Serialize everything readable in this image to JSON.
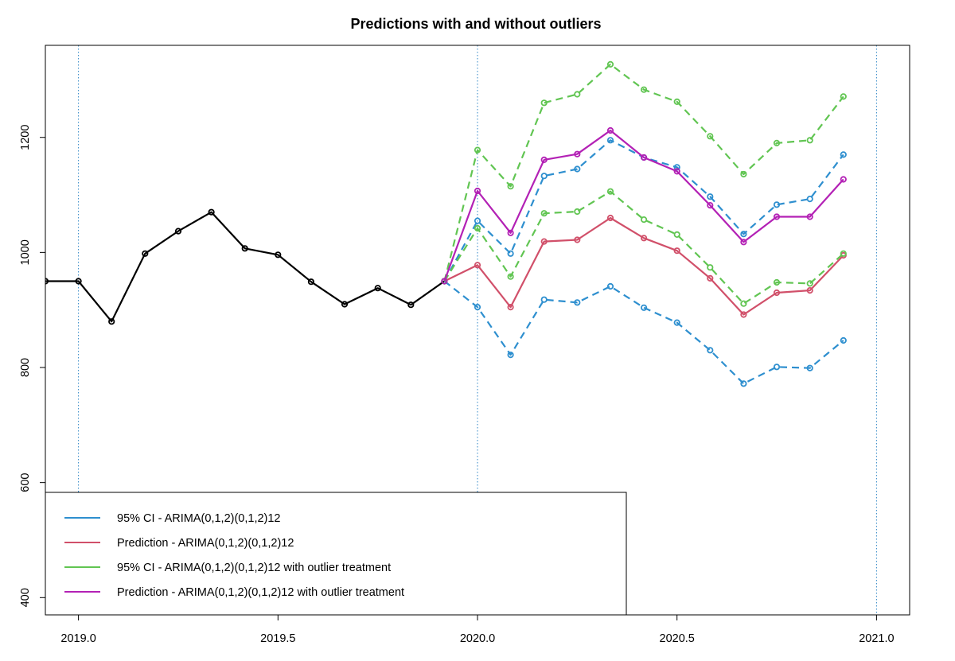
{
  "chart_data": {
    "type": "line",
    "title": "Predictions with and without outliers",
    "xlabel": "",
    "ylabel": "",
    "xlim": [
      2018.917,
      2021.083
    ],
    "ylim": [
      370,
      1360
    ],
    "x_ticks": [
      2019.0,
      2019.5,
      2020.0,
      2020.5,
      2021.0
    ],
    "x_tick_labels": [
      "2019.0",
      "2019.5",
      "2020.0",
      "2020.5",
      "2021.0"
    ],
    "y_ticks": [
      400,
      600,
      800,
      1000,
      1200
    ],
    "y_tick_labels": [
      "400",
      "600",
      "800",
      "1000",
      "1200"
    ],
    "vlines": [
      2019.0,
      2020.0,
      2021.0
    ],
    "grid": false,
    "legend_position": "bottom-left",
    "series": [
      {
        "name": "",
        "color": "#000000",
        "line_style": "solid",
        "x": [
          2018.917,
          2019.0,
          2019.083,
          2019.167,
          2019.25,
          2019.333,
          2019.417,
          2019.5,
          2019.583,
          2019.667,
          2019.75,
          2019.833,
          2019.917
        ],
        "values": [
          950,
          950,
          880,
          998,
          1037,
          1070,
          1007,
          996,
          949,
          910,
          938,
          909,
          950
        ]
      },
      {
        "name": "95% CI -  ARIMA(0,1,2)(0,1,2)12",
        "color": "#2e8fcf",
        "line_style": "dashed",
        "x": [
          2019.917,
          2020.0,
          2020.083,
          2020.167,
          2020.25,
          2020.333,
          2020.417,
          2020.5,
          2020.583,
          2020.667,
          2020.75,
          2020.833,
          2020.917
        ],
        "values": [
          950,
          1055,
          998,
          1133,
          1145,
          1195,
          1165,
          1148,
          1097,
          1032,
          1083,
          1093,
          1170
        ]
      },
      {
        "name": "",
        "color": "#2e8fcf",
        "line_style": "dashed",
        "x": [
          2019.917,
          2020.0,
          2020.083,
          2020.167,
          2020.25,
          2020.333,
          2020.417,
          2020.5,
          2020.583,
          2020.667,
          2020.75,
          2020.833,
          2020.917
        ],
        "values": [
          950,
          905,
          822,
          918,
          913,
          941,
          904,
          878,
          830,
          772,
          801,
          799,
          847
        ]
      },
      {
        "name": "Prediction -  ARIMA(0,1,2)(0,1,2)12",
        "color": "#d1506a",
        "line_style": "solid",
        "x": [
          2019.917,
          2020.0,
          2020.083,
          2020.167,
          2020.25,
          2020.333,
          2020.417,
          2020.5,
          2020.583,
          2020.667,
          2020.75,
          2020.833,
          2020.917
        ],
        "values": [
          950,
          978,
          905,
          1019,
          1022,
          1060,
          1025,
          1003,
          955,
          892,
          930,
          934,
          995
        ]
      },
      {
        "name": "95% CI -  ARIMA(0,1,2)(0,1,2)12 with outlier treatment",
        "color": "#61c552",
        "line_style": "dashed",
        "x": [
          2019.917,
          2020.0,
          2020.083,
          2020.167,
          2020.25,
          2020.333,
          2020.417,
          2020.5,
          2020.583,
          2020.667,
          2020.75,
          2020.833,
          2020.917
        ],
        "values": [
          950,
          1178,
          1115,
          1260,
          1275,
          1327,
          1283,
          1262,
          1202,
          1136,
          1190,
          1195,
          1271
        ]
      },
      {
        "name": "",
        "color": "#61c552",
        "line_style": "dashed",
        "x": [
          2019.917,
          2020.0,
          2020.083,
          2020.167,
          2020.25,
          2020.333,
          2020.417,
          2020.5,
          2020.583,
          2020.667,
          2020.75,
          2020.833,
          2020.917
        ],
        "values": [
          950,
          1042,
          958,
          1068,
          1071,
          1106,
          1057,
          1031,
          974,
          911,
          948,
          946,
          998
        ]
      },
      {
        "name": "Prediction -  ARIMA(0,1,2)(0,1,2)12 with outlier treatment",
        "color": "#b321b5",
        "line_style": "solid",
        "x": [
          2019.917,
          2020.0,
          2020.083,
          2020.167,
          2020.25,
          2020.333,
          2020.417,
          2020.5,
          2020.583,
          2020.667,
          2020.75,
          2020.833,
          2020.917
        ],
        "values": [
          950,
          1107,
          1034,
          1161,
          1171,
          1212,
          1165,
          1141,
          1082,
          1018,
          1062,
          1062,
          1127
        ]
      }
    ],
    "legend": [
      {
        "label": "95% CI -  ARIMA(0,1,2)(0,1,2)12",
        "color": "#2e8fcf"
      },
      {
        "label": "Prediction -  ARIMA(0,1,2)(0,1,2)12",
        "color": "#d1506a"
      },
      {
        "label": "95% CI -  ARIMA(0,1,2)(0,1,2)12 with outlier treatment",
        "color": "#61c552"
      },
      {
        "label": "Prediction -  ARIMA(0,1,2)(0,1,2)12 with outlier treatment",
        "color": "#b321b5"
      }
    ]
  }
}
